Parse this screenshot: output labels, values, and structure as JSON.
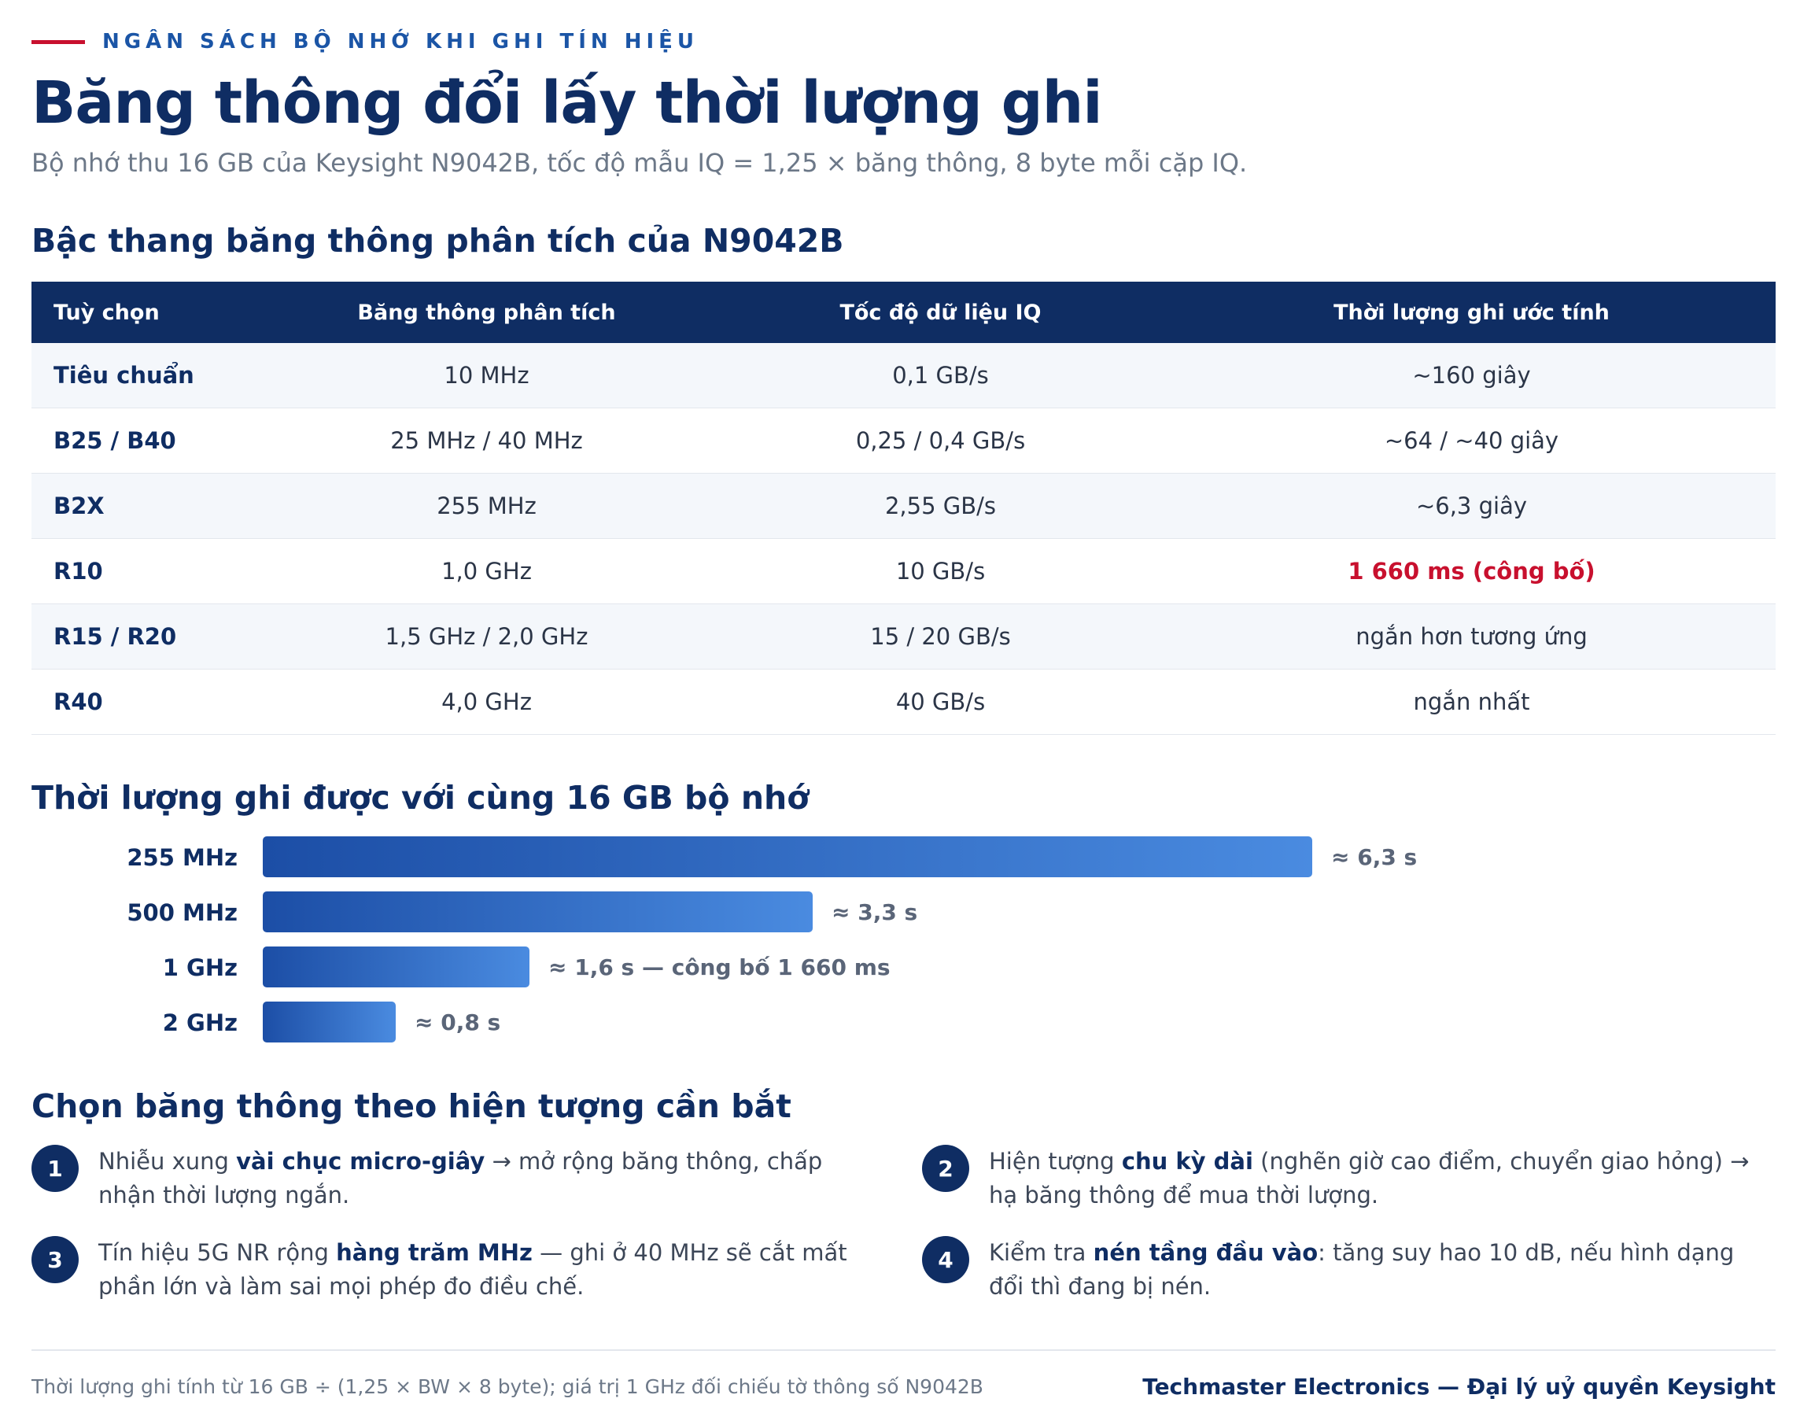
{
  "header": {
    "eyebrow": "NGÂN SÁCH BỘ NHỚ KHI GHI TÍN HIỆU",
    "title": "Băng thông đổi lấy thời lượng ghi",
    "subtitle": "Bộ nhớ thu 16 GB của Keysight N9042B, tốc độ mẫu IQ = 1,25 × băng thông, 8 byte mỗi cặp IQ."
  },
  "ladder": {
    "heading": "Bậc thang băng thông phân tích của N9042B",
    "columns": [
      "Tuỳ chọn",
      "Băng thông phân tích",
      "Tốc độ dữ liệu IQ",
      "Thời lượng ghi ước tính"
    ],
    "rows": [
      {
        "option": "Tiêu chuẩn",
        "bandwidth": "10 MHz",
        "rate": "0,1 GB/s",
        "duration": "~160 giây"
      },
      {
        "option": "B25 / B40",
        "bandwidth": "25 MHz / 40 MHz",
        "rate": "0,25 / 0,4 GB/s",
        "duration": "~64 / ~40 giây"
      },
      {
        "option": "B2X",
        "bandwidth": "255 MHz",
        "rate": "2,55 GB/s",
        "duration": "~6,3 giây"
      },
      {
        "option": "R10",
        "bandwidth": "1,0 GHz",
        "rate": "10 GB/s",
        "duration": "1 660 ms (công bố)"
      },
      {
        "option": "R15 / R20",
        "bandwidth": "1,5 GHz / 2,0 GHz",
        "rate": "15 / 20 GB/s",
        "duration": "ngắn hơn tương ứng"
      },
      {
        "option": "R40",
        "bandwidth": "4,0 GHz",
        "rate": "40 GB/s",
        "duration": "ngắn nhất"
      }
    ],
    "highlight_color": "#c8102e"
  },
  "chart_data": {
    "type": "bar",
    "orientation": "horizontal",
    "title": "Thời lượng ghi được với cùng 16 GB bộ nhớ",
    "categories": [
      "255 MHz",
      "500 MHz",
      "1 GHz",
      "2 GHz"
    ],
    "values": [
      6.3,
      3.3,
      1.6,
      0.8
    ],
    "value_labels": [
      "≈ 6,3 s",
      "≈ 3,3 s",
      "≈ 1,6 s — công bố 1 660 ms",
      "≈ 0,8 s"
    ],
    "unit": "s",
    "xlim": [
      0,
      6.3
    ],
    "grid": false,
    "colors": [
      "#1c4ea6",
      "#4a8be0"
    ]
  },
  "guide": {
    "heading": "Chọn băng thông theo hiện tượng cần bắt",
    "items": [
      {
        "num": "1",
        "pre": "Nhiễu xung ",
        "bold": "vài chục micro-giây",
        "post": " → mở rộng băng thông, chấp nhận thời lượng ngắn."
      },
      {
        "num": "2",
        "pre": "Hiện tượng ",
        "bold": "chu kỳ dài",
        "post": " (nghẽn giờ cao điểm, chuyển giao hỏng) → hạ băng thông để mua thời lượng."
      },
      {
        "num": "3",
        "pre": "Tín hiệu 5G NR rộng ",
        "bold": "hàng trăm MHz",
        "post": " — ghi ở 40 MHz sẽ cắt mất phần lớn và làm sai mọi phép đo điều chế."
      },
      {
        "num": "4",
        "pre": "Kiểm tra ",
        "bold": "nén tầng đầu vào",
        "post": ": tăng suy hao 10 dB, nếu hình dạng đổi thì đang bị nén."
      }
    ]
  },
  "footer": {
    "note": "Thời lượng ghi tính từ 16 GB ÷ (1,25 × BW × 8 byte); giá trị 1 GHz đối chiếu tờ thông số N9042B",
    "brand": "Techmaster Electronics — Đại lý uỷ quyền Keysight"
  },
  "colors": {
    "navy": "#0f2d63",
    "accent_red": "#c8102e",
    "eyebrow_blue": "#1b55a6"
  }
}
